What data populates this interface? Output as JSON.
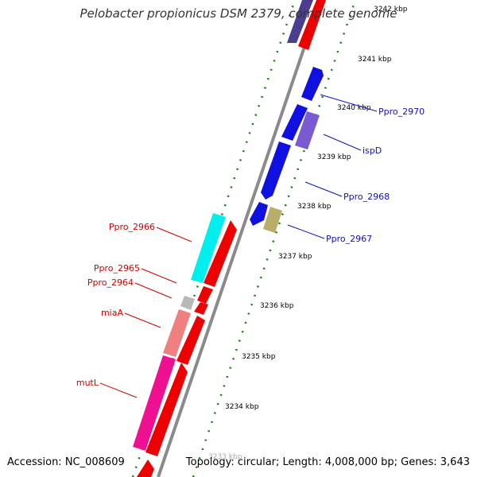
{
  "title": "Pelobacter propionicus DSM 2379, complete genome",
  "footer": {
    "accession": "Accession: NC_008609",
    "stats": "Topology: circular; Length: 4,008,000 bp; Genes: 3,643"
  },
  "colors": {
    "backbone": "#8a8a8a",
    "tick_ring": "#1a7a1a",
    "cds_red": "#ee0000",
    "cds_blue": "#0000ee",
    "label_red": "#d40000",
    "label_blue": "#1010c8"
  },
  "scale_labels": [
    "3242 kbp",
    "3241 kbp",
    "3240 kbp",
    "3239 kbp",
    "3238 kbp",
    "3237 kbp",
    "3236 kbp",
    "3235 kbp",
    "3234 kbp",
    "3233 kbp"
  ],
  "gene_labels": {
    "left": [
      "Ppro_2966",
      "Ppro_2965",
      "Ppro_2964",
      "miaA",
      "mutL"
    ],
    "right": [
      "Ppro_2970",
      "ispD",
      "Ppro_2968",
      "Ppro_2967"
    ]
  }
}
